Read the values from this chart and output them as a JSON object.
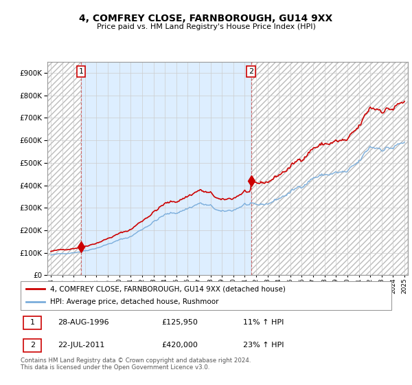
{
  "title": "4, COMFREY CLOSE, FARNBOROUGH, GU14 9XX",
  "subtitle": "Price paid vs. HM Land Registry's House Price Index (HPI)",
  "legend_line1": "4, COMFREY CLOSE, FARNBOROUGH, GU14 9XX (detached house)",
  "legend_line2": "HPI: Average price, detached house, Rushmoor",
  "annotation1_label": "1",
  "annotation1_date": "28-AUG-1996",
  "annotation1_price": "£125,950",
  "annotation1_hpi": "11% ↑ HPI",
  "annotation2_label": "2",
  "annotation2_date": "22-JUL-2011",
  "annotation2_price": "£420,000",
  "annotation2_hpi": "23% ↑ HPI",
  "footer": "Contains HM Land Registry data © Crown copyright and database right 2024.\nThis data is licensed under the Open Government Licence v3.0.",
  "sale_color": "#cc0000",
  "hpi_color": "#7aaddb",
  "between_bg_color": "#ddeeff",
  "background_color": "#ffffff",
  "ylim": [
    0,
    950000
  ],
  "yticks": [
    0,
    100000,
    200000,
    300000,
    400000,
    500000,
    600000,
    700000,
    800000,
    900000
  ],
  "ytick_labels": [
    "£0",
    "£100K",
    "£200K",
    "£300K",
    "£400K",
    "£500K",
    "£600K",
    "£700K",
    "£800K",
    "£900K"
  ],
  "sale_years": [
    1996.65,
    2011.55
  ],
  "sale_prices": [
    125950,
    420000
  ],
  "xmin": 1993.7,
  "xmax": 2025.3
}
